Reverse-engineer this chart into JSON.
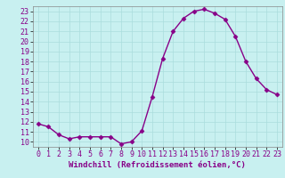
{
  "x": [
    0,
    1,
    2,
    3,
    4,
    5,
    6,
    7,
    8,
    9,
    10,
    11,
    12,
    13,
    14,
    15,
    16,
    17,
    18,
    19,
    20,
    21,
    22,
    23
  ],
  "y": [
    11.8,
    11.5,
    10.7,
    10.3,
    10.5,
    10.5,
    10.5,
    10.5,
    9.8,
    10.0,
    11.1,
    14.5,
    18.3,
    21.0,
    22.3,
    23.0,
    23.2,
    22.8,
    22.2,
    20.5,
    18.0,
    16.3,
    15.2,
    14.7
  ],
  "line_color": "#880088",
  "marker": "D",
  "markersize": 2.5,
  "linewidth": 1.0,
  "bg_color": "#c8f0f0",
  "grid_color": "#aadddd",
  "xlabel": "Windchill (Refroidissement éolien,°C)",
  "xlabel_fontsize": 6.5,
  "tick_fontsize": 6.0,
  "xlim": [
    -0.5,
    23.5
  ],
  "ylim": [
    9.5,
    23.5
  ],
  "yticks": [
    10,
    11,
    12,
    13,
    14,
    15,
    16,
    17,
    18,
    19,
    20,
    21,
    22,
    23
  ],
  "xticks": [
    0,
    1,
    2,
    3,
    4,
    5,
    6,
    7,
    8,
    9,
    10,
    11,
    12,
    13,
    14,
    15,
    16,
    17,
    18,
    19,
    20,
    21,
    22,
    23
  ]
}
